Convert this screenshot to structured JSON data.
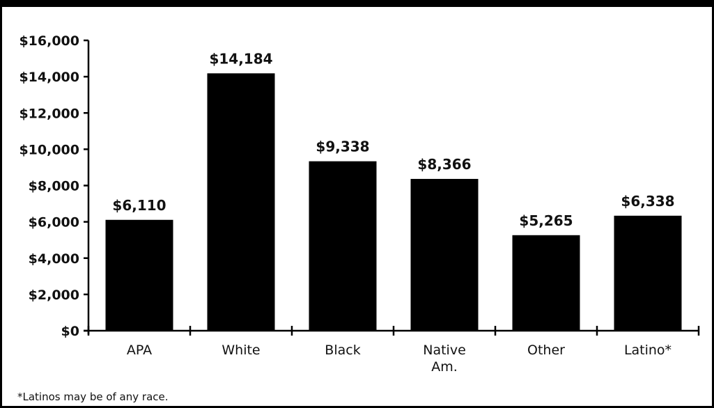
{
  "chart_data": {
    "type": "bar",
    "categories": [
      "APA",
      "White",
      "Black",
      "Native Am.",
      "Other",
      "Latino*"
    ],
    "category_lines": [
      [
        "APA"
      ],
      [
        "White"
      ],
      [
        "Black"
      ],
      [
        "Native",
        "Am."
      ],
      [
        "Other"
      ],
      [
        "Latino*"
      ]
    ],
    "values": [
      6110,
      14184,
      9338,
      8366,
      5265,
      6338
    ],
    "value_labels": [
      "$6,110",
      "$14,184",
      "$9,338",
      "$8,366",
      "$5,265",
      "$6,338"
    ],
    "yticks": [
      0,
      2000,
      4000,
      6000,
      8000,
      10000,
      12000,
      14000,
      16000
    ],
    "ytick_labels": [
      "$0",
      "$2,000",
      "$4,000",
      "$6,000",
      "$8,000",
      "$10,000",
      "$12,000",
      "$14,000",
      "$16,000"
    ],
    "ylim": [
      0,
      16000
    ],
    "title": "",
    "xlabel": "",
    "ylabel": "",
    "grid": false,
    "bar_color": "#000000"
  },
  "footnote": "*Latinos may be of any race."
}
